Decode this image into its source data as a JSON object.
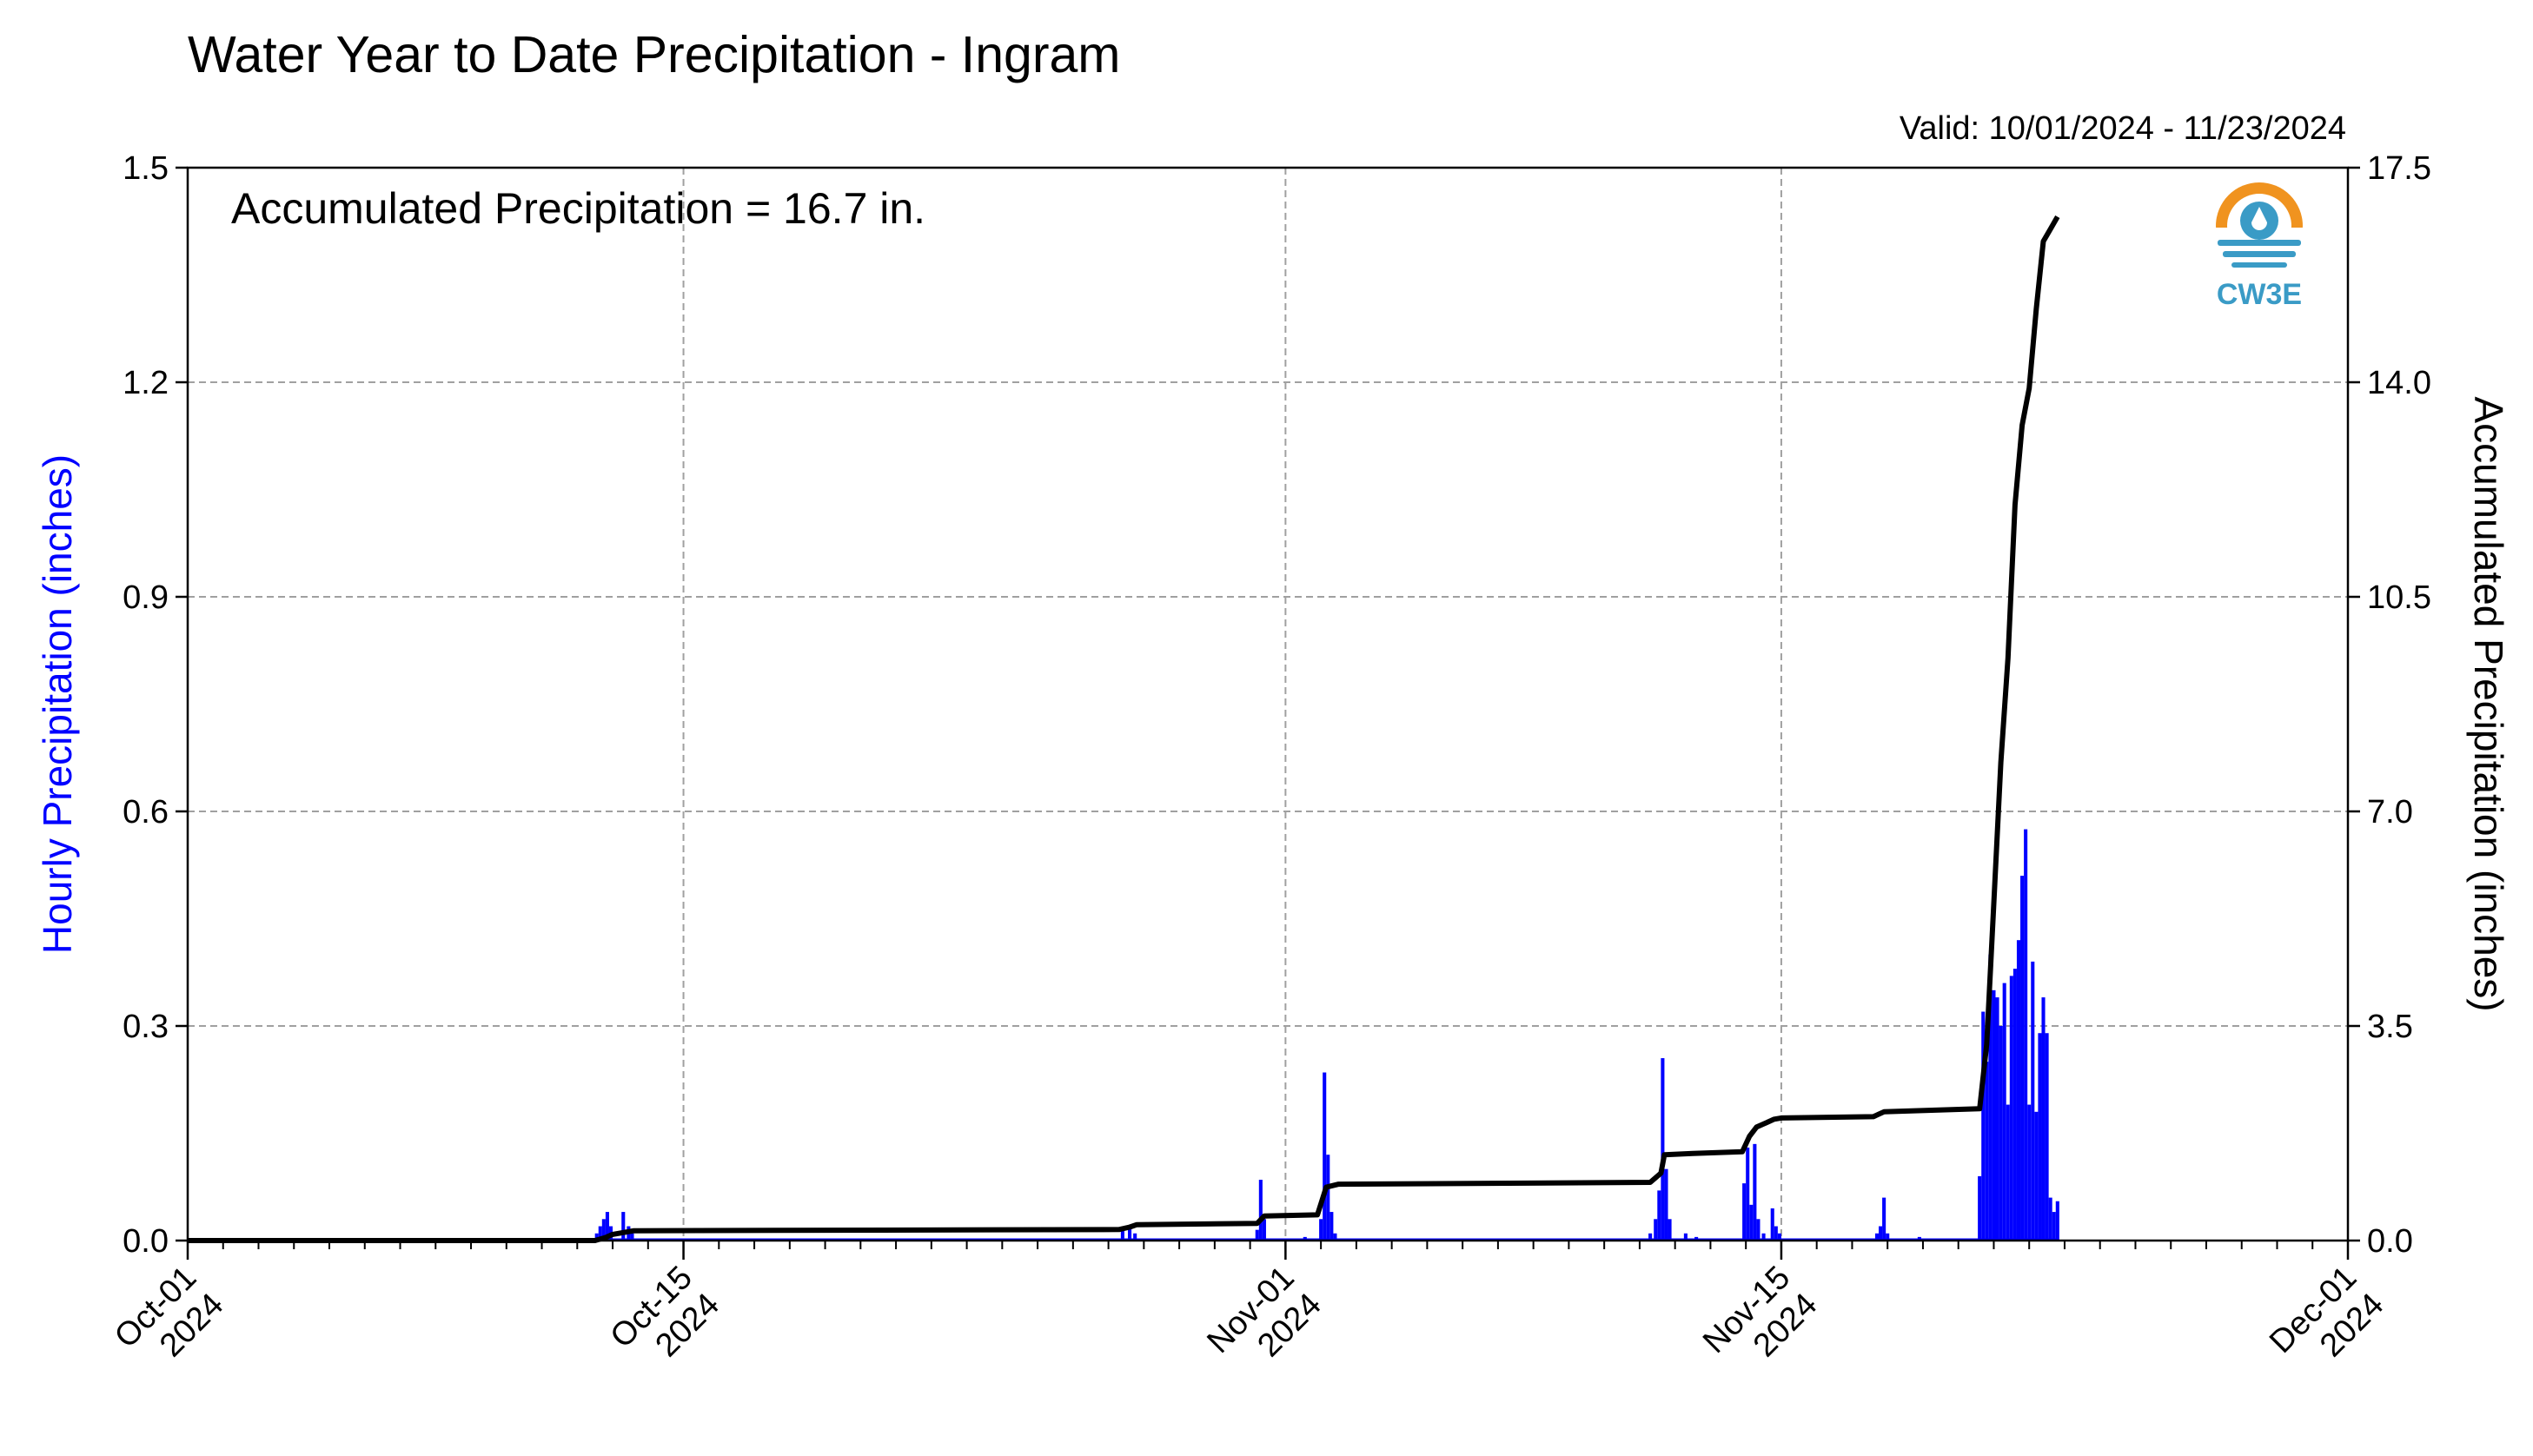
{
  "title": "Water Year to Date Precipitation - Ingram",
  "valid_text": "Valid: 10/01/2024 - 11/23/2024",
  "annotation": "Accumulated Precipitation = 16.7 in.",
  "logo": {
    "text": "CW3E",
    "icon": "cw3e-logo-icon"
  },
  "colors": {
    "hourly": "#0000ff",
    "accumulated": "#000000",
    "grid": "#a0a0a0",
    "logo_orange": "#f0931f",
    "logo_blue": "#3a9bc6"
  },
  "chart_data": {
    "type": "bar+line",
    "title": "Water Year to Date Precipitation - Ingram",
    "xlabel": "",
    "ylabel": "Hourly Precipitation (inches)",
    "y2label": "Accumulated Precipitation (inches)",
    "xlim": [
      0,
      61
    ],
    "ylim": [
      0,
      1.5
    ],
    "y2lim": [
      0,
      17.5
    ],
    "grid": true,
    "x_ticks": [
      {
        "day": 0,
        "line1": "Oct-01",
        "line2": "2024"
      },
      {
        "day": 14,
        "line1": "Oct-15",
        "line2": "2024"
      },
      {
        "day": 31,
        "line1": "Nov-01",
        "line2": "2024"
      },
      {
        "day": 45,
        "line1": "Nov-15",
        "line2": "2024"
      },
      {
        "day": 61,
        "line1": "Dec-01",
        "line2": "2024"
      }
    ],
    "y_ticks": [
      "0.0",
      "0.3",
      "0.6",
      "0.9",
      "1.2",
      "1.5"
    ],
    "y2_ticks": [
      "0.0",
      "3.5",
      "7.0",
      "10.5",
      "14.0",
      "17.5"
    ],
    "hourly_bars": [
      [
        11.55,
        0.01
      ],
      [
        11.65,
        0.02
      ],
      [
        11.75,
        0.03
      ],
      [
        11.85,
        0.04
      ],
      [
        11.95,
        0.02
      ],
      [
        12.3,
        0.04
      ],
      [
        12.45,
        0.02
      ],
      [
        12.55,
        0.01
      ],
      [
        26.4,
        0.015
      ],
      [
        26.6,
        0.02
      ],
      [
        26.75,
        0.01
      ],
      [
        30.2,
        0.015
      ],
      [
        30.3,
        0.085
      ],
      [
        30.4,
        0.03
      ],
      [
        31.55,
        0.005
      ],
      [
        32.0,
        0.03
      ],
      [
        32.1,
        0.235
      ],
      [
        32.2,
        0.12
      ],
      [
        32.3,
        0.04
      ],
      [
        32.4,
        0.01
      ],
      [
        41.3,
        0.01
      ],
      [
        41.45,
        0.03
      ],
      [
        41.55,
        0.07
      ],
      [
        41.65,
        0.255
      ],
      [
        41.75,
        0.1
      ],
      [
        41.85,
        0.03
      ],
      [
        42.3,
        0.01
      ],
      [
        42.6,
        0.005
      ],
      [
        43.95,
        0.08
      ],
      [
        44.05,
        0.13
      ],
      [
        44.15,
        0.05
      ],
      [
        44.25,
        0.135
      ],
      [
        44.35,
        0.03
      ],
      [
        44.5,
        0.01
      ],
      [
        44.75,
        0.045
      ],
      [
        44.85,
        0.02
      ],
      [
        44.95,
        0.01
      ],
      [
        47.7,
        0.01
      ],
      [
        47.8,
        0.02
      ],
      [
        47.9,
        0.06
      ],
      [
        48.0,
        0.01
      ],
      [
        48.9,
        0.005
      ],
      [
        50.6,
        0.09
      ],
      [
        50.7,
        0.32
      ],
      [
        50.8,
        0.25
      ],
      [
        50.9,
        0.4
      ],
      [
        51.0,
        0.35
      ],
      [
        51.1,
        0.34
      ],
      [
        51.2,
        0.3
      ],
      [
        51.3,
        0.36
      ],
      [
        51.4,
        0.19
      ],
      [
        51.5,
        0.37
      ],
      [
        51.6,
        0.38
      ],
      [
        51.7,
        0.42
      ],
      [
        51.8,
        0.51
      ],
      [
        51.9,
        0.575
      ],
      [
        52.0,
        0.19
      ],
      [
        52.1,
        0.39
      ],
      [
        52.2,
        0.18
      ],
      [
        52.3,
        0.29
      ],
      [
        52.4,
        0.34
      ],
      [
        52.5,
        0.29
      ],
      [
        52.6,
        0.06
      ],
      [
        52.7,
        0.04
      ],
      [
        52.8,
        0.055
      ]
    ],
    "accumulated_line": [
      [
        0,
        0.0
      ],
      [
        11.5,
        0.0
      ],
      [
        11.8,
        0.05
      ],
      [
        12.0,
        0.1
      ],
      [
        12.3,
        0.13
      ],
      [
        12.6,
        0.16
      ],
      [
        26.3,
        0.18
      ],
      [
        26.6,
        0.22
      ],
      [
        26.8,
        0.26
      ],
      [
        30.2,
        0.28
      ],
      [
        30.4,
        0.4
      ],
      [
        31.9,
        0.42
      ],
      [
        32.15,
        0.87
      ],
      [
        32.5,
        0.92
      ],
      [
        41.3,
        0.95
      ],
      [
        41.6,
        1.1
      ],
      [
        41.7,
        1.4
      ],
      [
        42.5,
        1.42
      ],
      [
        43.9,
        1.45
      ],
      [
        44.1,
        1.7
      ],
      [
        44.3,
        1.85
      ],
      [
        44.8,
        1.98
      ],
      [
        45.0,
        2.0
      ],
      [
        47.6,
        2.02
      ],
      [
        47.9,
        2.1
      ],
      [
        50.6,
        2.15
      ],
      [
        50.8,
        3.2
      ],
      [
        51.0,
        5.5
      ],
      [
        51.2,
        7.8
      ],
      [
        51.4,
        9.5
      ],
      [
        51.6,
        12.0
      ],
      [
        51.8,
        13.3
      ],
      [
        52.0,
        13.9
      ],
      [
        52.2,
        15.2
      ],
      [
        52.4,
        16.3
      ],
      [
        52.6,
        16.5
      ],
      [
        52.8,
        16.7
      ]
    ]
  }
}
